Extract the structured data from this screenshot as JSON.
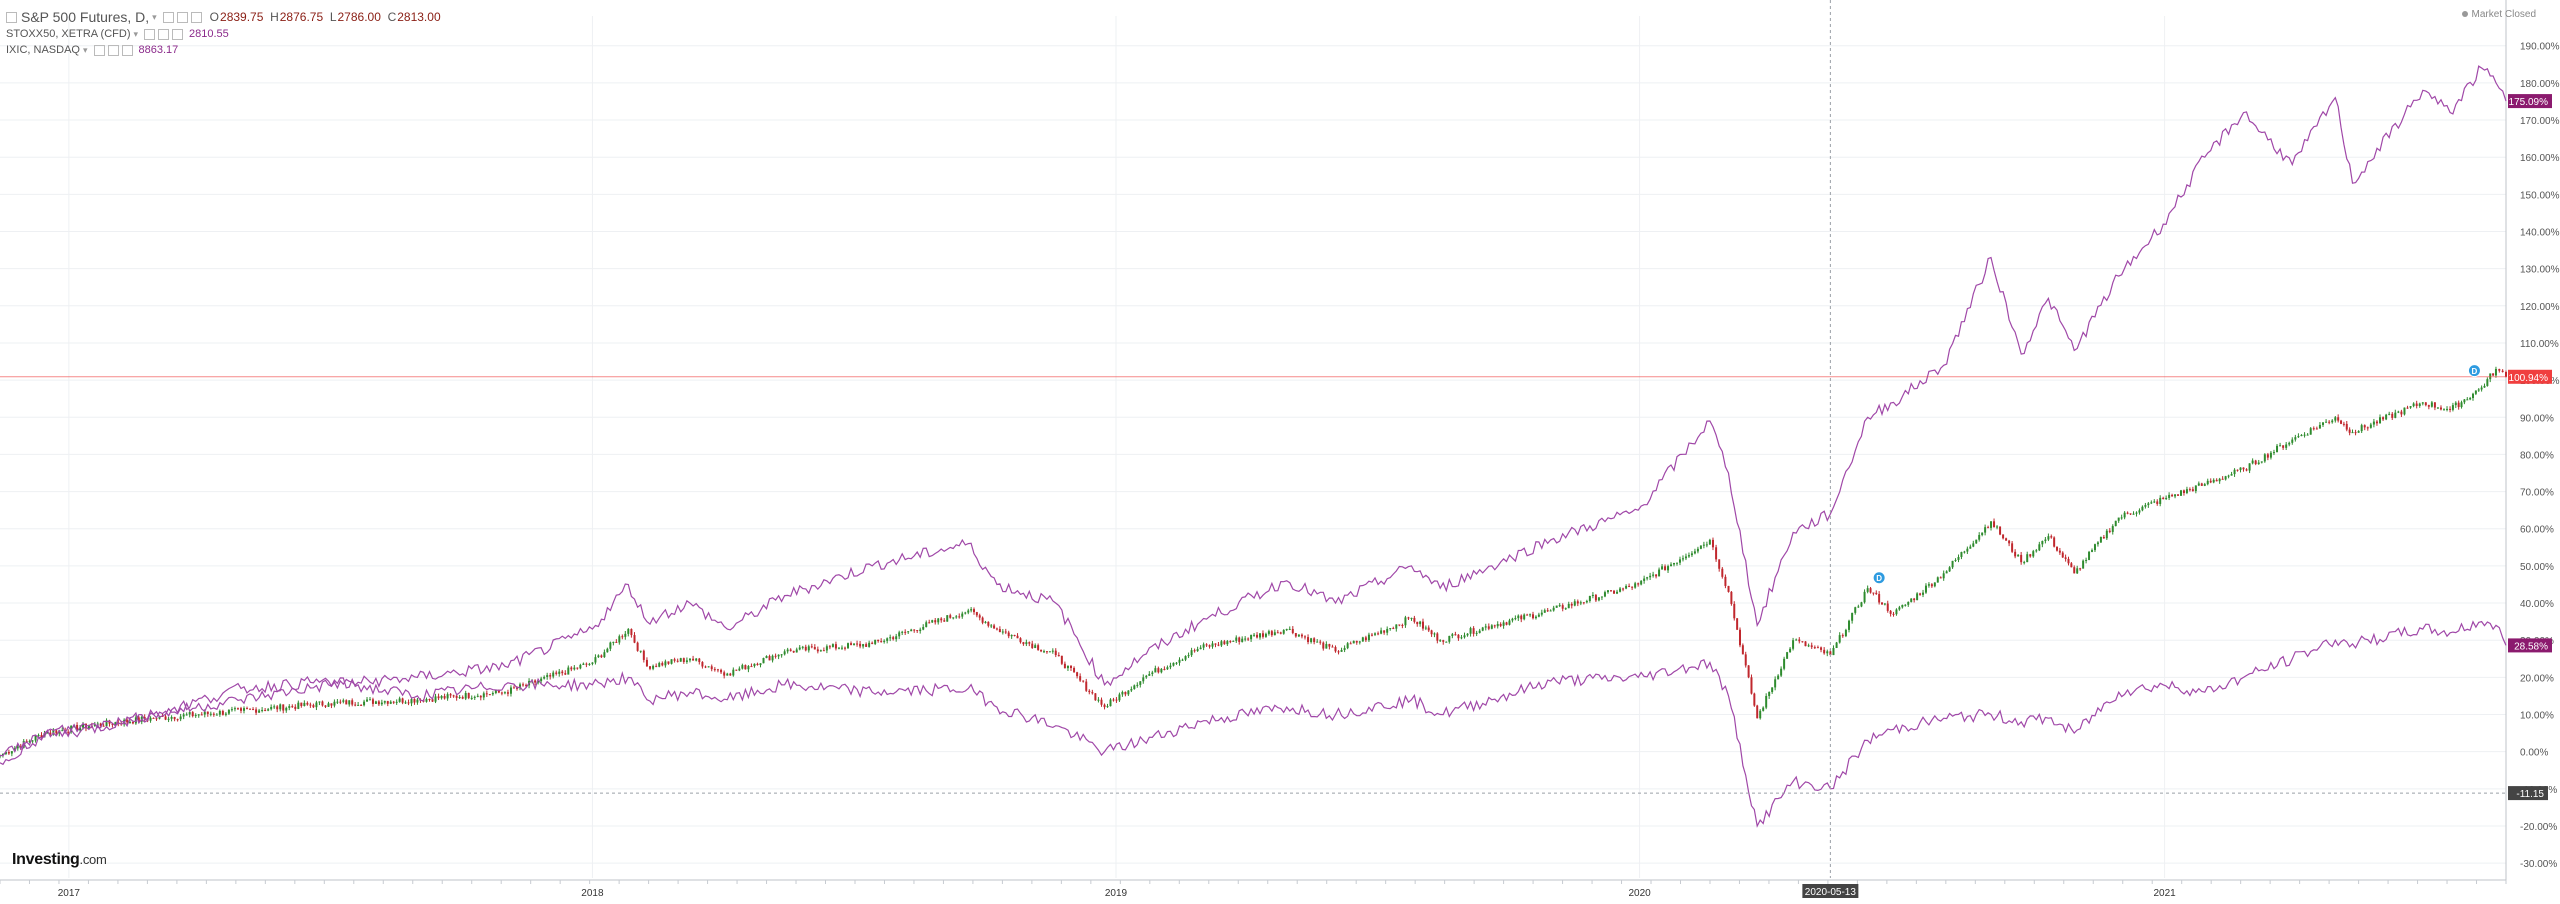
{
  "header": {
    "symbol": "S&P 500 Futures, D,",
    "ohlc": [
      {
        "k": "O",
        "v": "2839.75"
      },
      {
        "k": "H",
        "v": "2876.75"
      },
      {
        "k": "L",
        "v": "2786.00"
      },
      {
        "k": "C",
        "v": "2813.00"
      }
    ],
    "compare": [
      {
        "name": "STOXX50, XETRA (CFD)",
        "value": "2810.55"
      },
      {
        "name": "IXIC, NASDAQ",
        "value": "8863.17"
      }
    ],
    "status": "Market Closed"
  },
  "brand": {
    "main": "Investing",
    "suffix": ".com"
  },
  "colors": {
    "up": "#2e8b2e",
    "down": "#c0272d",
    "compare": "#a048a8",
    "last_price": "#f03e3e",
    "grid": "#eef0f3"
  },
  "icons": [
    "dropdown-arrow-icon",
    "eye-icon",
    "settings-icon",
    "close-icon",
    "dividend-flag-icon"
  ],
  "chart_data": {
    "type": "line",
    "x_axis_type": "date",
    "x_range": [
      "2016-11-14",
      "2021-08-27"
    ],
    "ylim": [
      -34,
      198
    ],
    "ylabel_unit": "%",
    "yticks": [
      -30,
      -20,
      -10,
      0,
      10,
      20,
      30,
      40,
      50,
      60,
      70,
      80,
      90,
      100,
      110,
      120,
      130,
      140,
      150,
      160,
      170,
      180,
      190
    ],
    "xticks": [
      {
        "label": "2017",
        "date": "2017-01-01"
      },
      {
        "label": "2018",
        "date": "2018-01-01"
      },
      {
        "label": "2019",
        "date": "2019-01-01"
      },
      {
        "label": "2020",
        "date": "2020-01-01"
      },
      {
        "label": "2021",
        "date": "2021-01-01"
      }
    ],
    "crosshair": {
      "date": "2020-05-13",
      "label": "2020-05-13",
      "value_label": "-11.15"
    },
    "grid": true,
    "series": [
      {
        "name": "S&P 500 Futures",
        "kind": "candlestick",
        "last_label": "100.94%",
        "x": [
          "2016-11-14",
          "2016-12-15",
          "2017-01-15",
          "2017-03-01",
          "2017-05-01",
          "2017-07-01",
          "2017-09-01",
          "2017-11-01",
          "2018-01-01",
          "2018-01-26",
          "2018-02-08",
          "2018-03-10",
          "2018-04-05",
          "2018-05-15",
          "2018-07-15",
          "2018-09-20",
          "2018-10-10",
          "2018-11-20",
          "2018-12-24",
          "2019-01-20",
          "2019-03-01",
          "2019-04-30",
          "2019-06-03",
          "2019-07-26",
          "2019-08-15",
          "2019-09-20",
          "2019-10-31",
          "2019-12-31",
          "2020-02-19",
          "2020-03-03",
          "2020-03-23",
          "2020-04-17",
          "2020-05-13",
          "2020-06-08",
          "2020-06-26",
          "2020-07-31",
          "2020-09-02",
          "2020-09-23",
          "2020-10-12",
          "2020-10-30",
          "2020-11-30",
          "2020-12-31",
          "2021-01-29",
          "2021-02-25",
          "2021-03-31",
          "2021-04-30",
          "2021-05-12",
          "2021-06-30",
          "2021-07-19",
          "2021-08-10",
          "2021-08-20",
          "2021-08-27"
        ],
        "y": [
          -1,
          5,
          7,
          9,
          11,
          13,
          14,
          16,
          24,
          33,
          23,
          25,
          21,
          27,
          29,
          38,
          33,
          26,
          12,
          20,
          28,
          33,
          27,
          36,
          30,
          34,
          38,
          45,
          57,
          43,
          9,
          30,
          26,
          44,
          37,
          48,
          62,
          51,
          58,
          48,
          63,
          68,
          72,
          76,
          84,
          90,
          86,
          94,
          92,
          98,
          103,
          100.9
        ]
      },
      {
        "name": "IXIC, NASDAQ",
        "kind": "line",
        "last_label": "175.09%",
        "x": [
          "2016-11-14",
          "2016-12-15",
          "2017-01-15",
          "2017-03-01",
          "2017-05-01",
          "2017-07-01",
          "2017-09-01",
          "2017-11-01",
          "2018-01-01",
          "2018-01-26",
          "2018-02-08",
          "2018-03-10",
          "2018-04-05",
          "2018-05-15",
          "2018-07-15",
          "2018-09-20",
          "2018-10-10",
          "2018-11-20",
          "2018-12-24",
          "2019-01-20",
          "2019-03-01",
          "2019-04-30",
          "2019-06-03",
          "2019-07-26",
          "2019-08-15",
          "2019-09-20",
          "2019-10-31",
          "2019-12-31",
          "2020-02-19",
          "2020-03-03",
          "2020-03-23",
          "2020-04-17",
          "2020-05-13",
          "2020-06-08",
          "2020-06-26",
          "2020-07-31",
          "2020-09-02",
          "2020-09-23",
          "2020-10-12",
          "2020-10-30",
          "2020-11-30",
          "2020-12-31",
          "2021-01-29",
          "2021-02-25",
          "2021-03-31",
          "2021-04-30",
          "2021-05-12",
          "2021-06-30",
          "2021-07-19",
          "2021-08-10",
          "2021-08-20",
          "2021-08-27"
        ],
        "y": [
          -1,
          4,
          6,
          10,
          14,
          18,
          20,
          23,
          33,
          45,
          35,
          40,
          33,
          42,
          50,
          56,
          45,
          40,
          18,
          26,
          35,
          46,
          40,
          50,
          44,
          50,
          57,
          65,
          89,
          75,
          34,
          59,
          64,
          90,
          94,
          104,
          133,
          107,
          122,
          108,
          128,
          142,
          160,
          172,
          158,
          176,
          153,
          178,
          172,
          184,
          180,
          175.1
        ]
      },
      {
        "name": "STOXX50, XETRA (CFD)",
        "kind": "line",
        "last_label": "28.58%",
        "x": [
          "2016-11-14",
          "2016-12-15",
          "2017-01-15",
          "2017-03-01",
          "2017-05-01",
          "2017-07-01",
          "2017-09-01",
          "2017-11-01",
          "2018-01-01",
          "2018-01-26",
          "2018-02-08",
          "2018-03-10",
          "2018-04-05",
          "2018-05-15",
          "2018-07-15",
          "2018-09-20",
          "2018-10-10",
          "2018-11-20",
          "2018-12-24",
          "2019-01-20",
          "2019-03-01",
          "2019-04-30",
          "2019-06-03",
          "2019-07-26",
          "2019-08-15",
          "2019-09-20",
          "2019-10-31",
          "2019-12-31",
          "2020-02-19",
          "2020-03-03",
          "2020-03-23",
          "2020-04-17",
          "2020-05-13",
          "2020-06-08",
          "2020-06-26",
          "2020-07-31",
          "2020-09-02",
          "2020-09-23",
          "2020-10-12",
          "2020-10-30",
          "2020-11-30",
          "2020-12-31",
          "2021-01-29",
          "2021-02-25",
          "2021-03-31",
          "2021-04-30",
          "2021-05-12",
          "2021-06-30",
          "2021-07-19",
          "2021-08-10",
          "2021-08-20",
          "2021-08-27"
        ],
        "y": [
          -3,
          5,
          7,
          10,
          17,
          19,
          15,
          18,
          18,
          20,
          14,
          16,
          14,
          18,
          16,
          17,
          12,
          7,
          0,
          3,
          8,
          12,
          10,
          14,
          10,
          14,
          19,
          20,
          24,
          15,
          -20,
          -8,
          -10,
          3,
          6,
          9,
          10,
          8,
          9,
          5,
          16,
          18,
          16,
          20,
          25,
          30,
          29,
          33,
          32,
          35,
          34,
          28.6
        ]
      }
    ],
    "markers": [
      {
        "series": "S&P 500 Futures",
        "date": "2020-06-16",
        "label": "D"
      },
      {
        "series": "S&P 500 Futures",
        "date": "2021-08-05",
        "label": "D"
      }
    ]
  }
}
